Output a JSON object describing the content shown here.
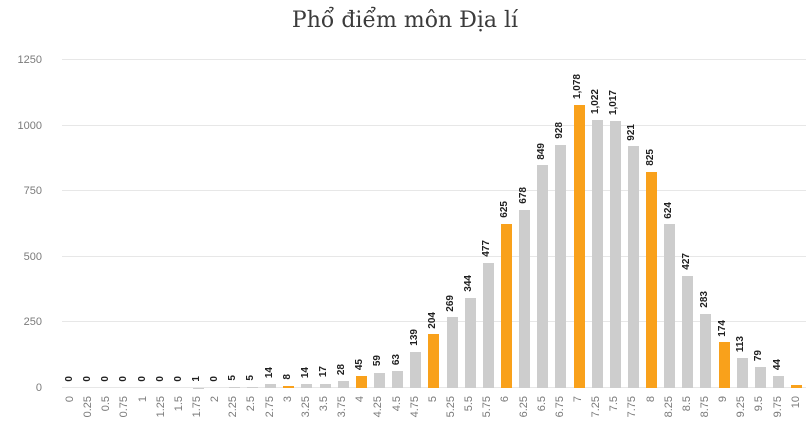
{
  "title": "Phổ điểm môn Địa lí",
  "colors": {
    "background": "#ffffff",
    "bar_default": "#cdcdcd",
    "bar_highlight": "#f9a11b",
    "grid": "#e7e7e7",
    "axis_label": "#7b7b7b",
    "value_label": "#1f1f1f",
    "title": "#3b3b3b"
  },
  "chart_data": {
    "type": "bar",
    "title": "Phổ điểm môn Địa lí",
    "xlabel": "",
    "ylabel": "",
    "ylim": [
      0,
      1250
    ],
    "yticks": [
      0,
      250,
      500,
      750,
      1000,
      1250
    ],
    "y_tick_labels": [
      "0",
      "250",
      "500",
      "750",
      "1000",
      "1250"
    ],
    "grid": true,
    "legend": false,
    "categories": [
      "0",
      "0.25",
      "0.5",
      "0.75",
      "1",
      "1.25",
      "1.5",
      "1.75",
      "2",
      "2.25",
      "2.5",
      "2.75",
      "3",
      "3.25",
      "3.5",
      "3.75",
      "4",
      "4.25",
      "4.5",
      "4.75",
      "5",
      "5.25",
      "5.5",
      "5.75",
      "6",
      "6.25",
      "6.5",
      "6.75",
      "7",
      "7.25",
      "7.5",
      "7.75",
      "8",
      "8.25",
      "8.5",
      "8.75",
      "9",
      "9.25",
      "9.5",
      "9.75",
      "10"
    ],
    "values": [
      0,
      0,
      0,
      0,
      0,
      0,
      0,
      1,
      0,
      5,
      5,
      14,
      8,
      14,
      17,
      28,
      45,
      59,
      63,
      139,
      204,
      269,
      344,
      477,
      625,
      678,
      849,
      928,
      1078,
      1022,
      1017,
      921,
      825,
      624,
      427,
      283,
      174,
      113,
      79,
      44,
      10
    ],
    "value_labels": [
      "0",
      "0",
      "0",
      "0",
      "0",
      "0",
      "0",
      "1",
      "0",
      "5",
      "5",
      "14",
      "8",
      "14",
      "17",
      "28",
      "45",
      "59",
      "63",
      "139",
      "204",
      "269",
      "344",
      "477",
      "625",
      "678",
      "849",
      "928",
      "1,078",
      "1,022",
      "1,017",
      "921",
      "825",
      "624",
      "427",
      "283",
      "174",
      "113",
      "79",
      "44",
      ""
    ],
    "highlighted_categories": [
      "0",
      "1",
      "2",
      "3",
      "4",
      "5",
      "6",
      "7",
      "8",
      "9",
      "10"
    ]
  }
}
